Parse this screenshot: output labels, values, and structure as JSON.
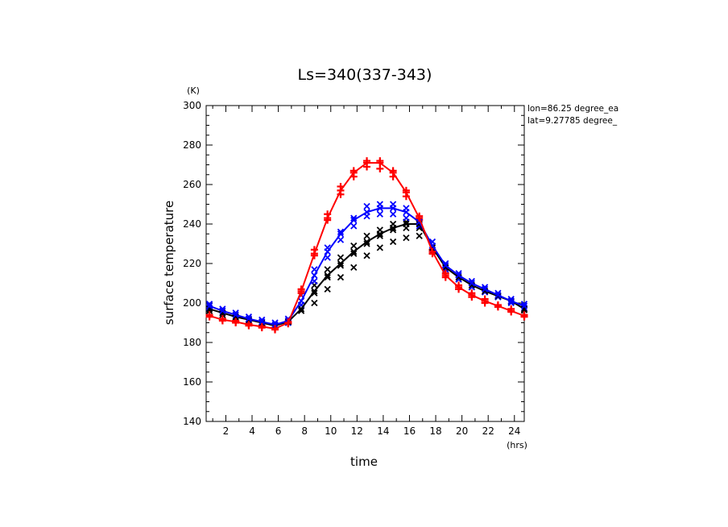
{
  "chart_data": {
    "type": "line",
    "title": "Ls=340(337-343)",
    "xlabel": "time",
    "ylabel": "surface temperature",
    "x_unit": "(hrs)",
    "y_unit": "(K)",
    "xlim": [
      0.5,
      24.75
    ],
    "ylim": [
      140,
      300
    ],
    "x_ticks": [
      2,
      4,
      6,
      8,
      10,
      12,
      14,
      16,
      18,
      20,
      22,
      24
    ],
    "x_tick_labels": [
      "2",
      "4",
      "6",
      "8",
      "10",
      "12",
      "14",
      "16",
      "18",
      "20",
      "22",
      "24"
    ],
    "y_ticks": [
      140,
      160,
      180,
      200,
      220,
      240,
      260,
      280,
      300
    ],
    "y_tick_labels": [
      "140",
      "160",
      "180",
      "200",
      "220",
      "240",
      "260",
      "280",
      "300"
    ],
    "annotations": [
      "lon=86.25 degree_ea",
      "lat=9.27785 degree_"
    ],
    "grid": false,
    "x": [
      0.75,
      1.75,
      2.75,
      3.75,
      4.75,
      5.75,
      6.75,
      7.75,
      8.75,
      9.75,
      10.75,
      11.75,
      12.75,
      13.75,
      14.75,
      15.75,
      16.75,
      17.75,
      18.75,
      19.75,
      20.75,
      21.75,
      22.75,
      23.75,
      24.75
    ],
    "series": [
      {
        "color": "#ff0000",
        "marker": "plus",
        "values": [
          193.5,
          191.5,
          190.5,
          189,
          188,
          187,
          190,
          206,
          225,
          243,
          257,
          266,
          271,
          271,
          266,
          256,
          243,
          226,
          214,
          208,
          204,
          201,
          198.5,
          196,
          193.5
        ]
      },
      {
        "color": "#0000ff",
        "marker": "x",
        "values": [
          198.5,
          196,
          194,
          192,
          190.5,
          189,
          191,
          201,
          214,
          226,
          235,
          242,
          246,
          248,
          248,
          246,
          241,
          229,
          219,
          214,
          210,
          207,
          204,
          201,
          198.5
        ]
      },
      {
        "color": "#000000",
        "marker": "x",
        "values": [
          197,
          195,
          193,
          191.5,
          190,
          188.5,
          190.5,
          197,
          206,
          214,
          220,
          226,
          231,
          235,
          238,
          240,
          240,
          228,
          218,
          213,
          209,
          206,
          203.5,
          201,
          197
        ]
      }
    ],
    "scatter_series": [
      {
        "color": "#ff0000",
        "marker": "plus",
        "points": [
          [
            0.75,
            194
          ],
          [
            0.75,
            193
          ],
          [
            1.75,
            192
          ],
          [
            1.75,
            191
          ],
          [
            2.75,
            191
          ],
          [
            2.75,
            190
          ],
          [
            3.75,
            189.5
          ],
          [
            3.75,
            188.5
          ],
          [
            4.75,
            188.5
          ],
          [
            4.75,
            187.5
          ],
          [
            5.75,
            187.5
          ],
          [
            5.75,
            186.5
          ],
          [
            6.75,
            190.5
          ],
          [
            6.75,
            189.5
          ],
          [
            7.75,
            207
          ],
          [
            7.75,
            205
          ],
          [
            8.75,
            227
          ],
          [
            8.75,
            224
          ],
          [
            9.75,
            245
          ],
          [
            9.75,
            242
          ],
          [
            10.75,
            259
          ],
          [
            10.75,
            255
          ],
          [
            11.75,
            267
          ],
          [
            11.75,
            264
          ],
          [
            12.75,
            272
          ],
          [
            12.75,
            269
          ],
          [
            13.75,
            272
          ],
          [
            13.75,
            268
          ],
          [
            14.75,
            267
          ],
          [
            14.75,
            264
          ],
          [
            15.75,
            257
          ],
          [
            15.75,
            254
          ],
          [
            16.75,
            244
          ],
          [
            16.75,
            242
          ],
          [
            17.75,
            227
          ],
          [
            17.75,
            225
          ],
          [
            18.75,
            215
          ],
          [
            18.75,
            213
          ],
          [
            19.75,
            209
          ],
          [
            19.75,
            207
          ],
          [
            20.75,
            205
          ],
          [
            20.75,
            203
          ],
          [
            21.75,
            202
          ],
          [
            21.75,
            200
          ],
          [
            22.75,
            199
          ],
          [
            22.75,
            198
          ],
          [
            23.75,
            197
          ],
          [
            23.75,
            195.5
          ],
          [
            24.75,
            194
          ],
          [
            24.75,
            193
          ]
        ]
      },
      {
        "color": "#0000ff",
        "marker": "x",
        "points": [
          [
            0.75,
            199.5
          ],
          [
            0.75,
            197.5
          ],
          [
            1.75,
            197
          ],
          [
            1.75,
            195
          ],
          [
            2.75,
            195
          ],
          [
            2.75,
            193
          ],
          [
            3.75,
            193
          ],
          [
            3.75,
            191
          ],
          [
            4.75,
            191.5
          ],
          [
            4.75,
            189.5
          ],
          [
            5.75,
            190
          ],
          [
            5.75,
            188
          ],
          [
            6.75,
            192
          ],
          [
            6.75,
            190
          ],
          [
            7.75,
            204
          ],
          [
            7.75,
            199
          ],
          [
            8.75,
            217
          ],
          [
            8.75,
            211
          ],
          [
            9.75,
            228
          ],
          [
            9.75,
            223
          ],
          [
            10.75,
            236
          ],
          [
            10.75,
            232
          ],
          [
            11.75,
            243
          ],
          [
            11.75,
            239
          ],
          [
            12.75,
            249
          ],
          [
            12.75,
            244
          ],
          [
            13.75,
            250
          ],
          [
            13.75,
            245
          ],
          [
            14.75,
            250
          ],
          [
            14.75,
            245
          ],
          [
            15.75,
            248
          ],
          [
            15.75,
            243
          ],
          [
            16.75,
            242
          ],
          [
            16.75,
            239
          ],
          [
            17.75,
            231
          ],
          [
            17.75,
            227
          ],
          [
            18.75,
            220
          ],
          [
            18.75,
            217
          ],
          [
            19.75,
            215
          ],
          [
            19.75,
            212
          ],
          [
            20.75,
            211
          ],
          [
            20.75,
            208
          ],
          [
            21.75,
            208
          ],
          [
            21.75,
            205.5
          ],
          [
            22.75,
            205
          ],
          [
            22.75,
            203
          ],
          [
            23.75,
            202
          ],
          [
            23.75,
            200
          ],
          [
            24.75,
            199.5
          ],
          [
            24.75,
            197.5
          ]
        ]
      },
      {
        "color": "#000000",
        "marker": "x",
        "points": [
          [
            0.75,
            196
          ],
          [
            1.75,
            194
          ],
          [
            2.75,
            192.5
          ],
          [
            3.75,
            191
          ],
          [
            4.75,
            189.5
          ],
          [
            5.75,
            188
          ],
          [
            6.75,
            190
          ],
          [
            7.75,
            196
          ],
          [
            7.75,
            199
          ],
          [
            8.75,
            200
          ],
          [
            8.75,
            205
          ],
          [
            8.75,
            209
          ],
          [
            9.75,
            207
          ],
          [
            9.75,
            213
          ],
          [
            9.75,
            217
          ],
          [
            10.75,
            213
          ],
          [
            10.75,
            219
          ],
          [
            10.75,
            223
          ],
          [
            11.75,
            218
          ],
          [
            11.75,
            225
          ],
          [
            11.75,
            229
          ],
          [
            12.75,
            224
          ],
          [
            12.75,
            230
          ],
          [
            12.75,
            234
          ],
          [
            13.75,
            228
          ],
          [
            13.75,
            234
          ],
          [
            13.75,
            237
          ],
          [
            14.75,
            231
          ],
          [
            14.75,
            237
          ],
          [
            14.75,
            240
          ],
          [
            15.75,
            233
          ],
          [
            15.75,
            238
          ],
          [
            15.75,
            241
          ],
          [
            16.75,
            234
          ],
          [
            16.75,
            238
          ],
          [
            16.75,
            241
          ],
          [
            17.75,
            226
          ],
          [
            18.75,
            217
          ],
          [
            19.75,
            212
          ],
          [
            20.75,
            208
          ],
          [
            21.75,
            205.5
          ],
          [
            22.75,
            203
          ],
          [
            23.75,
            200.5
          ],
          [
            24.75,
            196.5
          ]
        ]
      }
    ]
  }
}
